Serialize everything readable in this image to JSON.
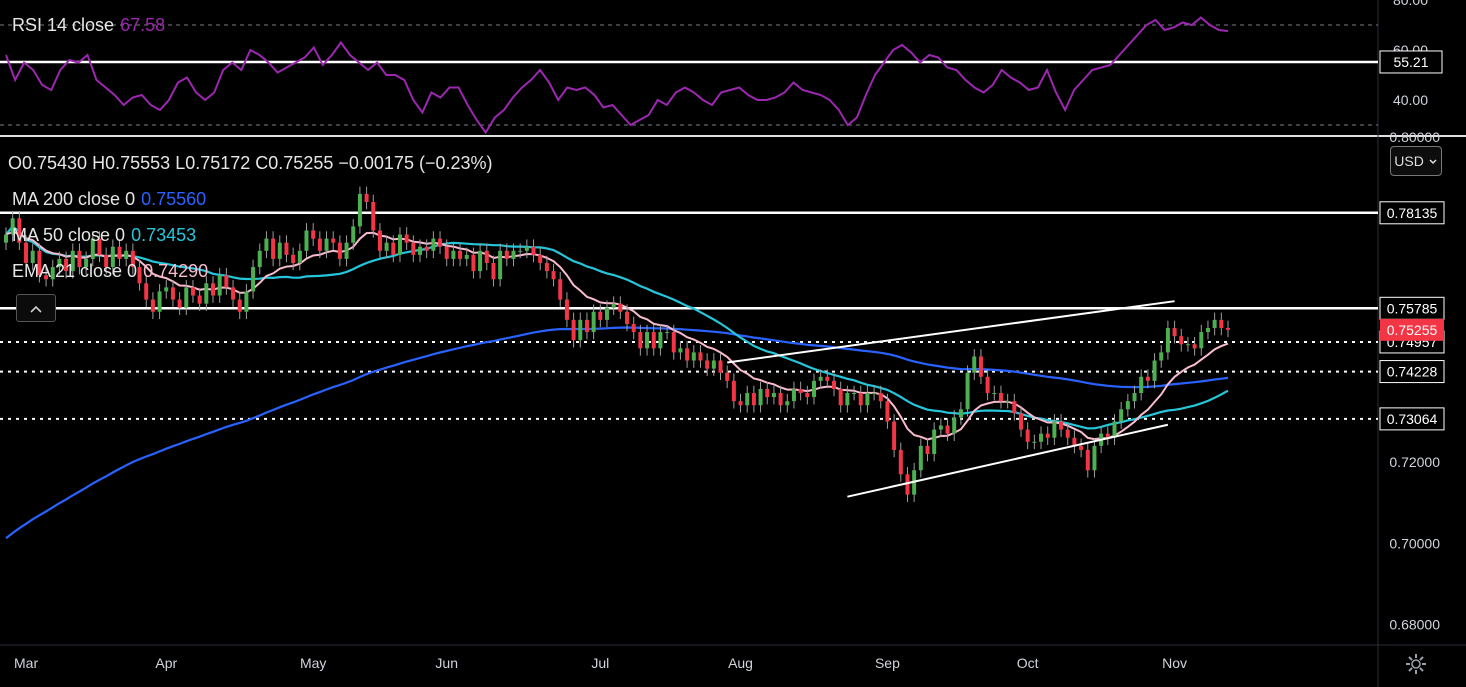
{
  "chart_data": [
    {
      "type": "line",
      "title": "RSI 14 close",
      "current_value": "67.58",
      "y_ticks": [
        "80.00",
        "60.00",
        "40.00"
      ],
      "ylim": [
        26,
        80
      ],
      "guide_lines": [
        70,
        30
      ],
      "level_line": {
        "value": 55.21,
        "label": "55.21"
      },
      "color": "#9c27b0",
      "values": [
        58,
        48,
        55,
        52,
        46,
        44,
        52,
        56,
        55,
        58,
        48,
        45,
        42,
        38,
        41,
        42,
        38,
        36,
        40,
        47,
        49,
        43,
        40,
        43,
        52,
        55,
        52,
        60,
        58,
        55,
        51,
        53,
        55,
        57,
        61,
        54,
        58,
        63,
        58,
        55,
        52,
        55,
        50,
        50,
        48,
        40,
        35,
        43,
        41,
        45,
        45,
        38,
        32,
        27,
        33,
        36,
        41,
        45,
        48,
        52,
        47,
        40,
        45,
        44,
        45,
        42,
        37,
        38,
        34,
        30,
        32,
        34,
        40,
        38,
        43,
        45,
        43,
        40,
        38,
        43,
        44,
        45,
        42,
        40,
        40,
        41,
        43,
        47,
        44,
        43,
        42,
        40,
        36,
        30,
        33,
        42,
        50,
        55,
        60,
        62,
        59,
        55,
        58,
        57,
        53,
        52,
        48,
        45,
        43,
        46,
        52,
        49,
        47,
        44,
        45,
        52,
        43,
        36,
        44,
        48,
        52,
        53,
        54,
        58,
        62,
        66,
        70,
        72,
        68,
        69,
        71,
        70,
        73,
        70,
        68,
        67.58
      ]
    },
    {
      "type": "candlestick",
      "ohlc_label": {
        "o": "O0.75430",
        "h": "H0.75553",
        "l": "L0.75172",
        "c": "C0.75255",
        "chg": "−0.00175 (−0.23%)"
      },
      "x_labels": [
        "Mar",
        "Apr",
        "May",
        "Jun",
        "Jul",
        "Aug",
        "Sep",
        "Oct",
        "Nov"
      ],
      "y_ticks": [
        "0.80000",
        "0.72000",
        "0.70000",
        "0.68000"
      ],
      "ylim": [
        0.675,
        0.8
      ],
      "currency_button": "USD",
      "closes": [
        0.776,
        0.78,
        0.774,
        0.769,
        0.772,
        0.766,
        0.765,
        0.768,
        0.77,
        0.767,
        0.772,
        0.768,
        0.77,
        0.775,
        0.771,
        0.768,
        0.773,
        0.77,
        0.772,
        0.768,
        0.764,
        0.76,
        0.757,
        0.762,
        0.763,
        0.76,
        0.758,
        0.763,
        0.761,
        0.759,
        0.764,
        0.761,
        0.766,
        0.763,
        0.76,
        0.757,
        0.762,
        0.768,
        0.772,
        0.775,
        0.77,
        0.774,
        0.771,
        0.769,
        0.772,
        0.777,
        0.775,
        0.772,
        0.775,
        0.774,
        0.77,
        0.774,
        0.778,
        0.786,
        0.784,
        0.777,
        0.772,
        0.774,
        0.771,
        0.776,
        0.774,
        0.771,
        0.773,
        0.772,
        0.775,
        0.773,
        0.77,
        0.772,
        0.77,
        0.771,
        0.767,
        0.772,
        0.769,
        0.765,
        0.772,
        0.77,
        0.772,
        0.772,
        0.773,
        0.771,
        0.769,
        0.767,
        0.765,
        0.76,
        0.755,
        0.75,
        0.755,
        0.752,
        0.757,
        0.755,
        0.758,
        0.759,
        0.757,
        0.754,
        0.752,
        0.748,
        0.752,
        0.748,
        0.752,
        0.752,
        0.747,
        0.748,
        0.745,
        0.747,
        0.745,
        0.743,
        0.745,
        0.742,
        0.74,
        0.735,
        0.734,
        0.737,
        0.734,
        0.738,
        0.736,
        0.737,
        0.734,
        0.735,
        0.738,
        0.737,
        0.736,
        0.74,
        0.741,
        0.74,
        0.738,
        0.734,
        0.737,
        0.737,
        0.734,
        0.737,
        0.737,
        0.735,
        0.73,
        0.723,
        0.717,
        0.712,
        0.718,
        0.724,
        0.722,
        0.728,
        0.729,
        0.727,
        0.731,
        0.733,
        0.742,
        0.746,
        0.741,
        0.737,
        0.737,
        0.735,
        0.735,
        0.732,
        0.728,
        0.725,
        0.725,
        0.727,
        0.726,
        0.73,
        0.728,
        0.726,
        0.724,
        0.723,
        0.718,
        0.724,
        0.727,
        0.726,
        0.73,
        0.733,
        0.735,
        0.737,
        0.741,
        0.74,
        0.745,
        0.747,
        0.753,
        0.751,
        0.749,
        0.749,
        0.748,
        0.752,
        0.753,
        0.755,
        0.753,
        0.75255
      ],
      "ma200": {
        "label": "MA 200 close 0",
        "value": "0.75560",
        "color": "#2962ff"
      },
      "ma50": {
        "label": "MA 50 close 0",
        "value": "0.73453",
        "color": "#26c6da"
      },
      "ema21": {
        "label": "EMA 21 close 0",
        "value": "0.74290",
        "color": "#f8bbd0"
      },
      "horizontal_levels": [
        {
          "value": 0.78135,
          "label": "0.78135",
          "style": "solid"
        },
        {
          "value": 0.75785,
          "label": "0.75785",
          "style": "solid"
        },
        {
          "value": 0.74957,
          "label": "0.74957",
          "style": "dotted"
        },
        {
          "value": 0.74228,
          "label": "0.74228",
          "style": "dotted"
        },
        {
          "value": 0.73064,
          "label": "0.73064",
          "style": "dotted"
        }
      ],
      "price_badge": {
        "value": 0.75255,
        "label": "0.75255",
        "color": "#f23645"
      }
    }
  ]
}
